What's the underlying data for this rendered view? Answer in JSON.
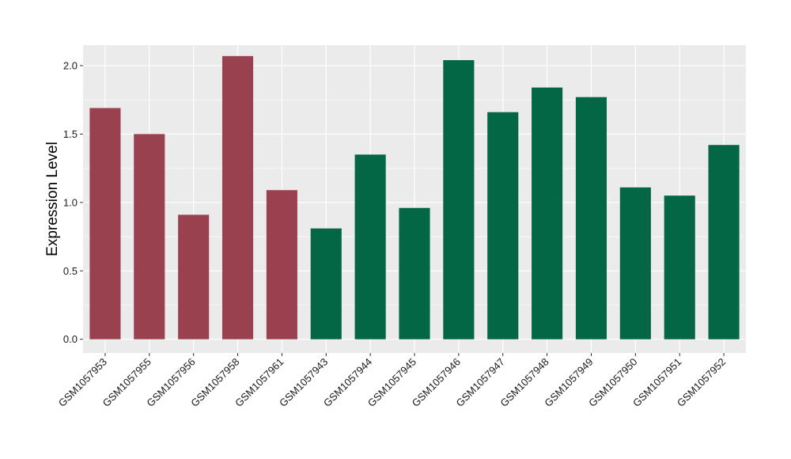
{
  "chart_data": {
    "type": "bar",
    "title": "",
    "xlabel": "",
    "ylabel": "Expression Level",
    "ylim": [
      -0.1,
      2.15
    ],
    "yticks": [
      0.0,
      0.5,
      1.0,
      1.5,
      2.0
    ],
    "ytick_labels": [
      "0.0",
      "0.5",
      "1.0",
      "1.5",
      "2.0"
    ],
    "grid": true,
    "legend": "none",
    "background_color": "#ebebeb",
    "grid_color": "#ffffff",
    "categories": [
      "GSM1057953",
      "GSM1057955",
      "GSM1057956",
      "GSM1057958",
      "GSM1057961",
      "GSM1057943",
      "GSM1057944",
      "GSM1057945",
      "GSM1057946",
      "GSM1057947",
      "GSM1057948",
      "GSM1057949",
      "GSM1057950",
      "GSM1057951",
      "GSM1057952"
    ],
    "values": [
      1.69,
      1.5,
      0.91,
      2.07,
      1.09,
      0.81,
      1.35,
      0.96,
      2.04,
      1.66,
      1.84,
      1.77,
      1.11,
      1.05,
      1.42
    ],
    "groups": [
      "a",
      "a",
      "a",
      "a",
      "a",
      "b",
      "b",
      "b",
      "b",
      "b",
      "b",
      "b",
      "b",
      "b",
      "b"
    ],
    "group_colors": {
      "a": "#99414e",
      "b": "#036644"
    }
  }
}
